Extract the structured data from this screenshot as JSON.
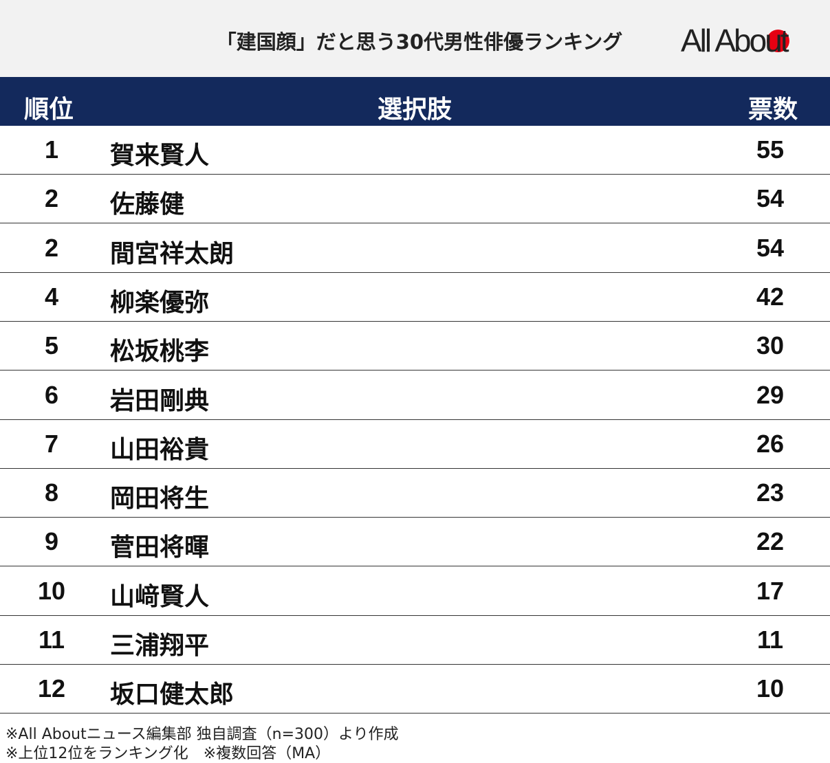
{
  "header": {
    "title": "「建国顔」だと思う30代男性俳優ランキング",
    "logo": "All About"
  },
  "table": {
    "columns": [
      "順位",
      "選択肢",
      "票数"
    ],
    "rows": [
      [
        1,
        "賀来賢人",
        55
      ],
      [
        2,
        "佐藤健",
        54
      ],
      [
        2,
        "間宮祥太朗",
        54
      ],
      [
        4,
        "柳楽優弥",
        42
      ],
      [
        5,
        "松坂桃李",
        30
      ],
      [
        6,
        "岩田剛典",
        29
      ],
      [
        7,
        "山田裕貴",
        26
      ],
      [
        8,
        "岡田将生",
        23
      ],
      [
        9,
        "菅田将暉",
        22
      ],
      [
        10,
        "山﨑賢人",
        17
      ],
      [
        11,
        "三浦翔平",
        11
      ],
      [
        12,
        "坂口健太郎",
        10
      ]
    ]
  },
  "notes": [
    "※All Aboutニュース編集部 独自調査（n=300）より作成",
    "※上位12位をランキング化　※複数回答（MA）"
  ]
}
